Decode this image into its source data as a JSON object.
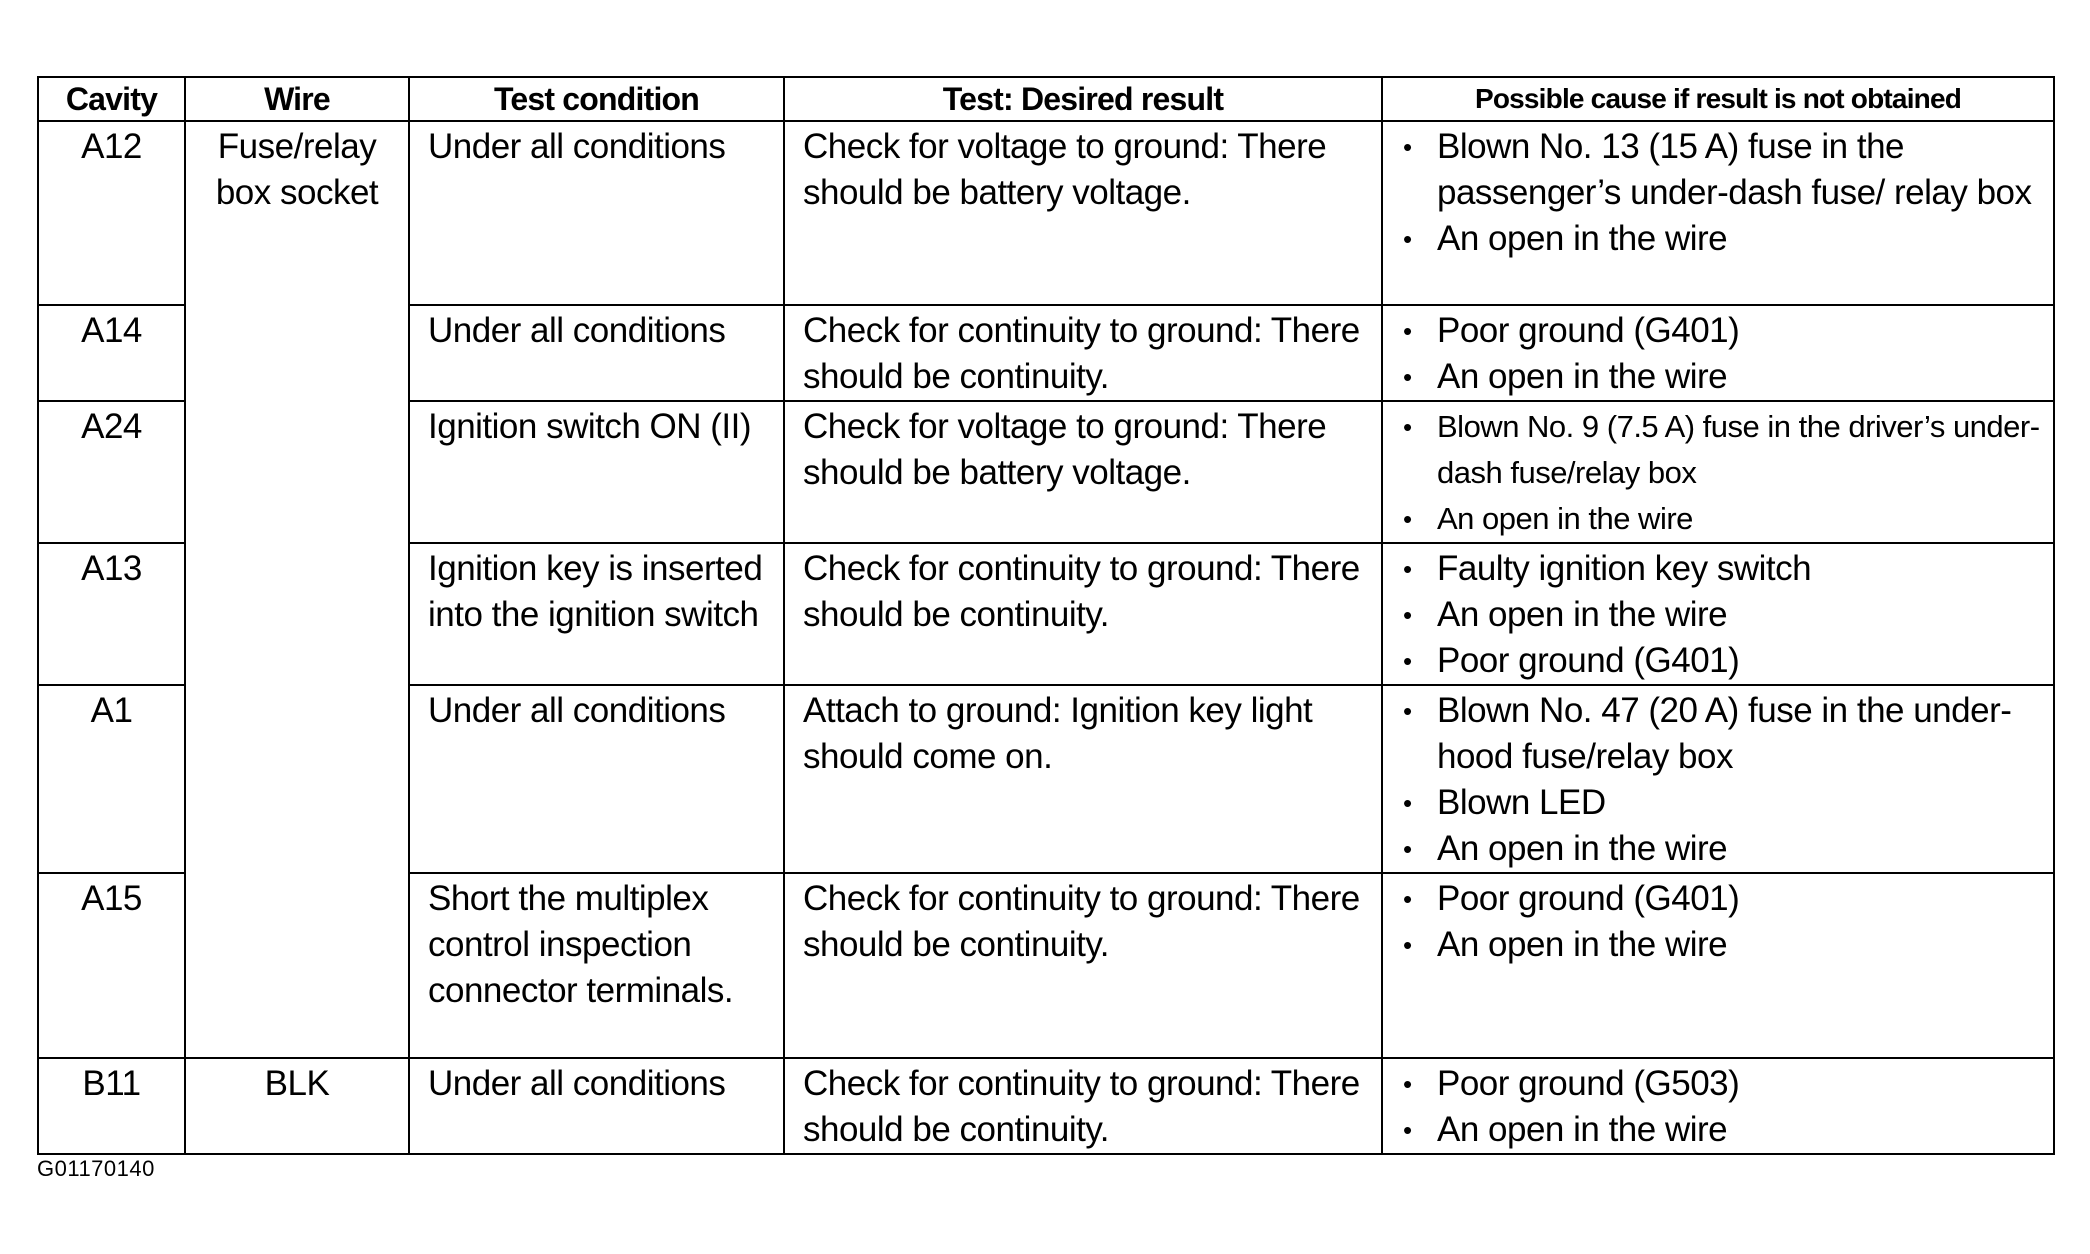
{
  "headers": [
    "Cavity",
    "Wire",
    "Test condition",
    "Test: Desired result",
    "Possible cause if result is not obtained"
  ],
  "rows": [
    {
      "cavity": "A12",
      "wire": "Fuse/relay box socket",
      "condition": "Under all conditions",
      "result": "Check for voltage to ground: There should be battery voltage.",
      "causes": [
        "Blown No. 13 (15 A) fuse in the passenger’s under-dash fuse/ relay box",
        "An open in the wire"
      ]
    },
    {
      "cavity": "A14",
      "condition": "Under all conditions",
      "result": "Check for continuity to ground: There should be continuity.",
      "causes": [
        "Poor ground (G401)",
        "An open in the wire"
      ]
    },
    {
      "cavity": "A24",
      "condition": "Ignition switch ON (II)",
      "result": "Check for voltage to ground: There should be battery voltage.",
      "causes": [
        "Blown No. 9 (7.5 A) fuse in the driver’s under-dash fuse/relay box",
        "An open in the wire"
      ]
    },
    {
      "cavity": "A13",
      "condition": "Ignition key is inserted into the ignition switch",
      "result": "Check for continuity to ground: There should be continuity.",
      "causes": [
        "Faulty ignition key switch",
        "An open in the wire",
        "Poor ground (G401)"
      ]
    },
    {
      "cavity": "A1",
      "condition": "Under all conditions",
      "result": "Attach to ground: Ignition key light should come on.",
      "causes": [
        "Blown No. 47 (20 A) fuse in the under-hood fuse/relay box",
        "Blown LED",
        "An open in the wire"
      ]
    },
    {
      "cavity": "A15",
      "condition": "Short the multiplex control inspection connector terminals.",
      "result": "Check for continuity to ground: There should be continuity.",
      "causes": [
        "Poor ground (G401)",
        "An open in the wire"
      ]
    },
    {
      "cavity": "B11",
      "wire": "BLK",
      "condition": "Under all conditions",
      "result": "Check for continuity to ground: There should be continuity.",
      "causes": [
        "Poor ground (G503)",
        "An open in the wire"
      ]
    }
  ],
  "footer": "G01170140"
}
